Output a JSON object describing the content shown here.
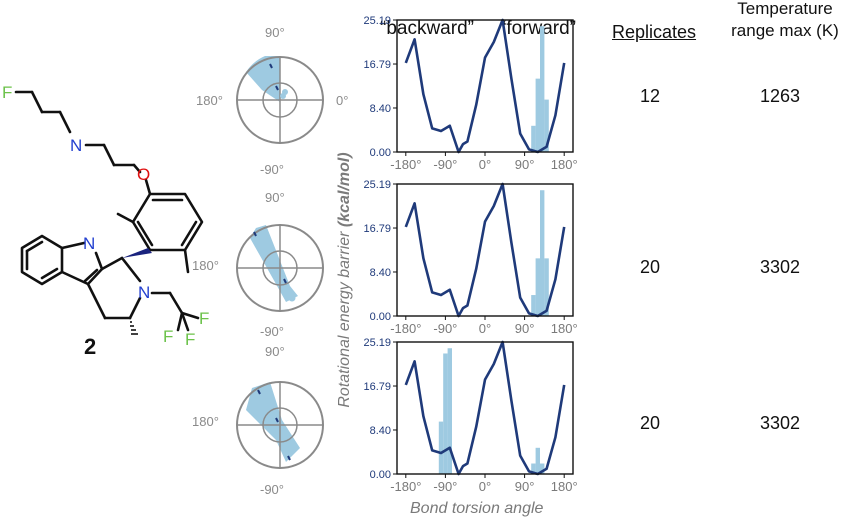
{
  "headers": {
    "backward": "“backward”",
    "forward": "“forward”",
    "replicates": "Replicates",
    "temp_line1": "Temperature",
    "temp_line2": "range max (K)"
  },
  "compound_label": "2",
  "molecule_atoms": {
    "F": "F",
    "N": "N",
    "O": "O"
  },
  "polar_labels": {
    "top": "90°",
    "left": "180°",
    "right": "0°",
    "bottom": "-90°"
  },
  "y_axis_label_prefix": "Rotational  energy barrier ",
  "y_axis_label_unit": "(kcal/mol)",
  "x_axis_label": "Bond torsion angle",
  "colors": {
    "line": "#1f3a7a",
    "hist": "#9ecae1",
    "polar_fill": "#9ecae1",
    "molecule_N": "#2340d0",
    "molecule_O": "#e01010",
    "molecule_F": "#6cc24a"
  },
  "chart_data": [
    {
      "type": "line",
      "xlim": [
        -200,
        200
      ],
      "ylim": [
        0,
        25.19
      ],
      "x_ticks": [
        "-180°",
        "-90°",
        "0°",
        "90°",
        "180°"
      ],
      "y_ticks": [
        "0.00",
        "8.40",
        "16.79",
        "25.19"
      ],
      "energy_profile": {
        "x": [
          -180,
          -160,
          -140,
          -120,
          -100,
          -80,
          -60,
          -50,
          -40,
          -20,
          0,
          20,
          40,
          60,
          80,
          100,
          120,
          140,
          160,
          180
        ],
        "y": [
          17.0,
          21.5,
          11.0,
          4.5,
          4.0,
          5.0,
          0.0,
          1.5,
          2.0,
          9.0,
          18.0,
          21.0,
          25.19,
          14.0,
          3.5,
          0.5,
          0.0,
          1.0,
          7.0,
          17.0
        ]
      },
      "histogram": {
        "x": [
          110,
          120,
          130,
          140
        ],
        "heights": [
          5.0,
          14.0,
          24.0,
          10.0
        ]
      },
      "replicates": "12",
      "temperature_max": "1263"
    },
    {
      "type": "line",
      "xlim": [
        -200,
        200
      ],
      "ylim": [
        0,
        25.19
      ],
      "x_ticks": [
        "-180°",
        "-90°",
        "0°",
        "90°",
        "180°"
      ],
      "y_ticks": [
        "0.00",
        "8.40",
        "16.79",
        "25.19"
      ],
      "energy_profile": {
        "x": [
          -180,
          -160,
          -140,
          -120,
          -100,
          -80,
          -60,
          -50,
          -40,
          -20,
          0,
          20,
          40,
          60,
          80,
          100,
          120,
          140,
          160,
          180
        ],
        "y": [
          17.0,
          21.5,
          11.0,
          4.5,
          4.0,
          5.0,
          0.0,
          1.5,
          2.0,
          9.0,
          18.0,
          21.0,
          25.19,
          14.0,
          3.5,
          0.5,
          0.0,
          1.0,
          7.0,
          17.0
        ]
      },
      "histogram": {
        "x": [
          110,
          120,
          130,
          140
        ],
        "heights": [
          4.0,
          11.0,
          24.0,
          11.0
        ]
      },
      "replicates": "20",
      "temperature_max": "3302"
    },
    {
      "type": "line",
      "xlim": [
        -200,
        200
      ],
      "ylim": [
        0,
        25.19
      ],
      "x_ticks": [
        "-180°",
        "-90°",
        "0°",
        "90°",
        "180°"
      ],
      "y_ticks": [
        "0.00",
        "8.40",
        "16.79",
        "25.19"
      ],
      "energy_profile": {
        "x": [
          -180,
          -160,
          -140,
          -120,
          -100,
          -80,
          -60,
          -50,
          -40,
          -20,
          0,
          20,
          40,
          60,
          80,
          100,
          120,
          140,
          160,
          180
        ],
        "y": [
          17.0,
          21.5,
          11.0,
          4.5,
          4.0,
          5.0,
          0.0,
          1.5,
          2.0,
          9.0,
          18.0,
          21.0,
          25.19,
          14.0,
          3.5,
          0.5,
          0.0,
          1.0,
          7.0,
          17.0
        ]
      },
      "histogram": {
        "x": [
          -100,
          -90,
          -80,
          110,
          120,
          130
        ],
        "heights": [
          10.0,
          23.0,
          24.0,
          2.0,
          5.0,
          2.0
        ]
      },
      "replicates": "20",
      "temperature_max": "3302"
    }
  ]
}
